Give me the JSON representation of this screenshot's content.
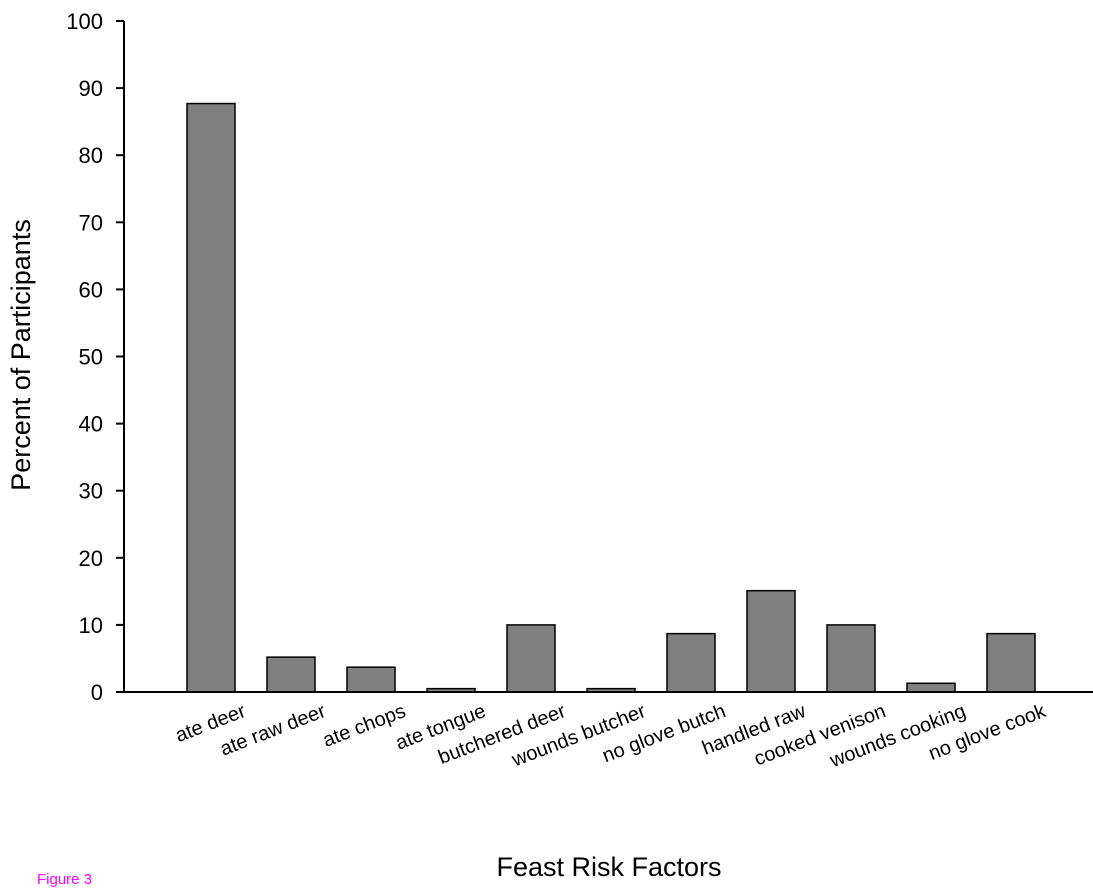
{
  "figure_label": "Figure 3",
  "colors": {
    "bar_fill": "#808080",
    "bar_stroke": "#000000",
    "axis": "#000000",
    "figure_label": "#ff00ff"
  },
  "chart_data": {
    "type": "bar",
    "title": "",
    "xlabel": "Feast Risk Factors",
    "ylabel": "Percent of Participants",
    "ylim": [
      0,
      100
    ],
    "yticks": [
      0,
      10,
      20,
      30,
      40,
      50,
      60,
      70,
      80,
      90,
      100
    ],
    "grid": false,
    "categories": [
      "ate deer",
      "ate raw deer",
      "ate chops",
      "ate tongue",
      "butchered deer",
      "wounds butcher",
      "no glove butch",
      "handled raw",
      "cooked venison",
      "wounds cooking",
      "no glove cook"
    ],
    "values": [
      87.7,
      5.2,
      3.7,
      0.5,
      10.0,
      0.5,
      8.7,
      15.1,
      10.0,
      1.3,
      8.7
    ]
  }
}
